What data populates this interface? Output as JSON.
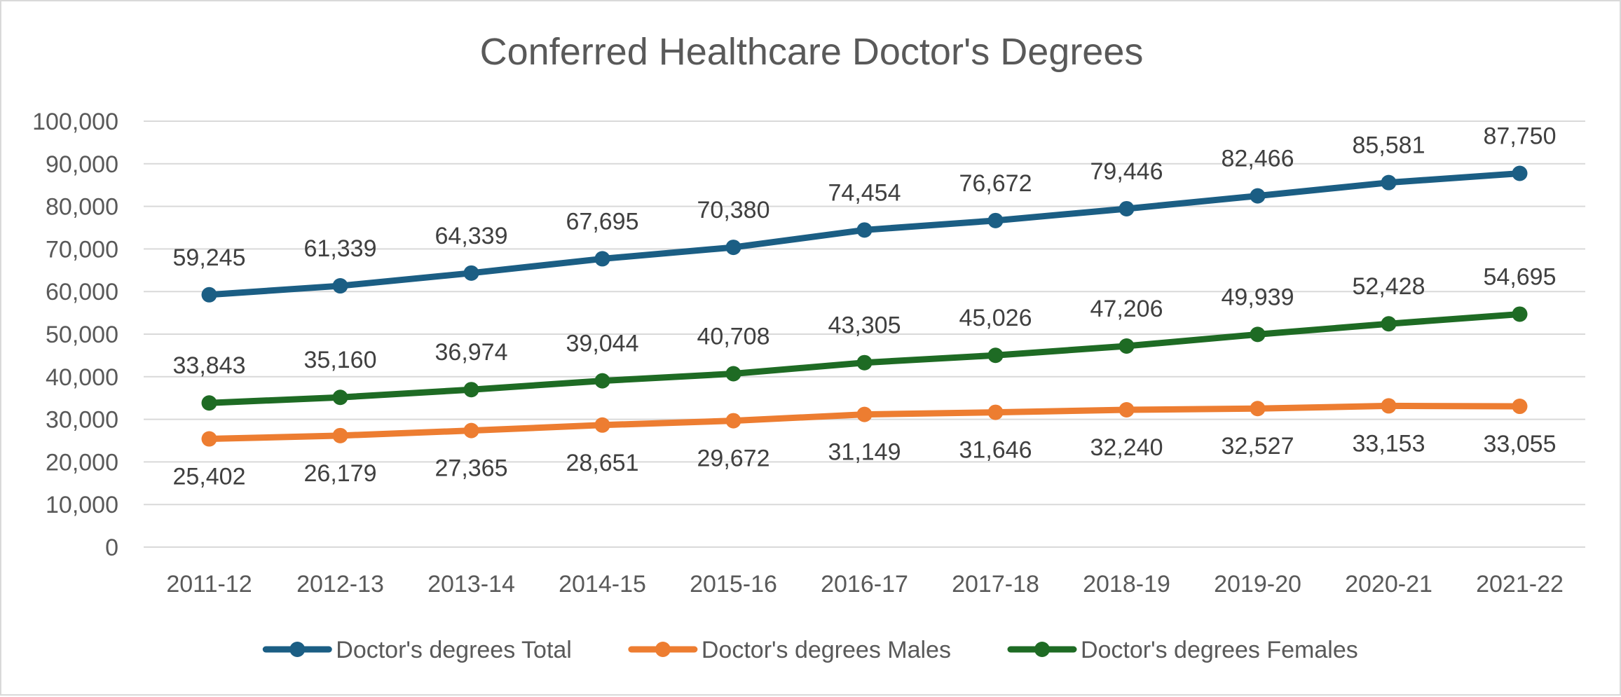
{
  "chart_data": {
    "type": "line",
    "title": "Conferred Healthcare Doctor's Degrees",
    "xlabel": "",
    "ylabel": "",
    "categories": [
      "2011-12",
      "2012-13",
      "2013-14",
      "2014-15",
      "2015-16",
      "2016-17",
      "2017-18",
      "2018-19",
      "2019-20",
      "2020-21",
      "2021-22"
    ],
    "ylim": [
      0,
      100000
    ],
    "y_ticks": [
      "0",
      "10,000",
      "20,000",
      "30,000",
      "40,000",
      "50,000",
      "60,000",
      "70,000",
      "80,000",
      "90,000",
      "100,000"
    ],
    "grid": true,
    "legend_position": "bottom",
    "series": [
      {
        "name": "Doctor's degrees Total",
        "color": "#1b5e84",
        "label_position": "above",
        "values": [
          59245,
          61339,
          64339,
          67695,
          70380,
          74454,
          76672,
          79446,
          82466,
          85581,
          87750
        ],
        "labels": [
          "59,245",
          "61,339",
          "64,339",
          "67,695",
          "70,380",
          "74,454",
          "76,672",
          "79,446",
          "82,466",
          "85,581",
          "87,750"
        ]
      },
      {
        "name": "Doctor's degrees Males",
        "color": "#ed7d31",
        "label_position": "below",
        "values": [
          25402,
          26179,
          27365,
          28651,
          29672,
          31149,
          31646,
          32240,
          32527,
          33153,
          33055
        ],
        "labels": [
          "25,402",
          "26,179",
          "27,365",
          "28,651",
          "29,672",
          "31,149",
          "31,646",
          "32,240",
          "32,527",
          "33,153",
          "33,055"
        ]
      },
      {
        "name": "Doctor's degrees Females",
        "color": "#1e6b24",
        "label_position": "above",
        "values": [
          33843,
          35160,
          36974,
          39044,
          40708,
          43305,
          45026,
          47206,
          49939,
          52428,
          54695
        ],
        "labels": [
          "33,843",
          "35,160",
          "36,974",
          "39,044",
          "40,708",
          "43,305",
          "45,026",
          "47,206",
          "49,939",
          "52,428",
          "54,695"
        ]
      }
    ]
  }
}
